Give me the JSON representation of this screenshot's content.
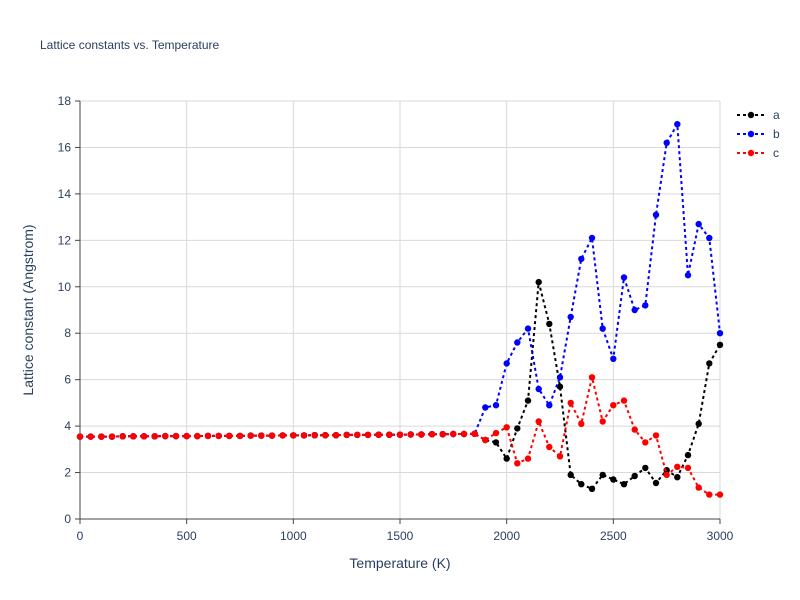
{
  "chart_data": {
    "type": "line",
    "title": "Lattice constants vs. Temperature",
    "xlabel": "Temperature (K)",
    "ylabel": "Lattice constant (Angstrom)",
    "xlim": [
      0,
      3000
    ],
    "ylim": [
      0,
      18
    ],
    "xticks": [
      0,
      500,
      1000,
      1500,
      2000,
      2500,
      3000
    ],
    "yticks": [
      0,
      2,
      4,
      6,
      8,
      10,
      12,
      14,
      16,
      18
    ],
    "grid": true,
    "legend_position": "top-right",
    "x": [
      0,
      50,
      100,
      150,
      200,
      250,
      300,
      350,
      400,
      450,
      500,
      550,
      600,
      650,
      700,
      750,
      800,
      850,
      900,
      950,
      1000,
      1050,
      1100,
      1150,
      1200,
      1250,
      1300,
      1350,
      1400,
      1450,
      1500,
      1550,
      1600,
      1650,
      1700,
      1750,
      1800,
      1850,
      1900,
      1950,
      2000,
      2050,
      2100,
      2150,
      2200,
      2250,
      2300,
      2350,
      2400,
      2450,
      2500,
      2550,
      2600,
      2650,
      2700,
      2750,
      2800,
      2850,
      2900,
      2950,
      3000
    ],
    "series": [
      {
        "name": "a",
        "color": "#000000",
        "values": [
          3.55,
          3.55,
          3.55,
          3.55,
          3.56,
          3.56,
          3.56,
          3.56,
          3.57,
          3.57,
          3.57,
          3.57,
          3.58,
          3.58,
          3.58,
          3.58,
          3.59,
          3.59,
          3.59,
          3.6,
          3.6,
          3.6,
          3.61,
          3.61,
          3.61,
          3.62,
          3.62,
          3.62,
          3.63,
          3.63,
          3.63,
          3.64,
          3.64,
          3.65,
          3.65,
          3.66,
          3.66,
          3.67,
          3.4,
          3.3,
          2.6,
          3.9,
          5.1,
          10.2,
          8.4,
          5.7,
          1.9,
          1.5,
          1.3,
          1.9,
          1.7,
          1.5,
          1.85,
          2.2,
          1.55,
          2.1,
          1.8,
          2.75,
          4.1,
          6.7,
          7.5
        ]
      },
      {
        "name": "b",
        "color": "#0000ff",
        "values": [
          3.55,
          3.55,
          3.55,
          3.55,
          3.56,
          3.56,
          3.56,
          3.56,
          3.57,
          3.57,
          3.57,
          3.57,
          3.58,
          3.58,
          3.58,
          3.58,
          3.59,
          3.59,
          3.59,
          3.6,
          3.6,
          3.6,
          3.61,
          3.61,
          3.61,
          3.62,
          3.62,
          3.62,
          3.63,
          3.63,
          3.63,
          3.64,
          3.64,
          3.65,
          3.65,
          3.66,
          3.66,
          3.67,
          4.8,
          4.9,
          6.7,
          7.6,
          8.2,
          5.6,
          4.9,
          6.1,
          8.7,
          11.2,
          12.1,
          8.2,
          6.9,
          10.4,
          9.0,
          9.2,
          13.1,
          16.2,
          17.0,
          10.5,
          12.7,
          12.1,
          8.0
        ]
      },
      {
        "name": "c",
        "color": "#ff0000",
        "values": [
          3.55,
          3.55,
          3.55,
          3.55,
          3.56,
          3.56,
          3.56,
          3.56,
          3.57,
          3.57,
          3.57,
          3.57,
          3.58,
          3.58,
          3.58,
          3.58,
          3.59,
          3.59,
          3.59,
          3.6,
          3.6,
          3.6,
          3.61,
          3.61,
          3.61,
          3.62,
          3.62,
          3.62,
          3.63,
          3.63,
          3.63,
          3.64,
          3.64,
          3.65,
          3.65,
          3.66,
          3.66,
          3.67,
          3.4,
          3.7,
          3.95,
          2.4,
          2.6,
          4.2,
          3.1,
          2.7,
          5.0,
          4.1,
          6.1,
          4.2,
          4.9,
          5.1,
          3.85,
          3.3,
          3.6,
          1.9,
          2.25,
          2.2,
          1.35,
          1.05,
          1.05
        ]
      }
    ]
  }
}
